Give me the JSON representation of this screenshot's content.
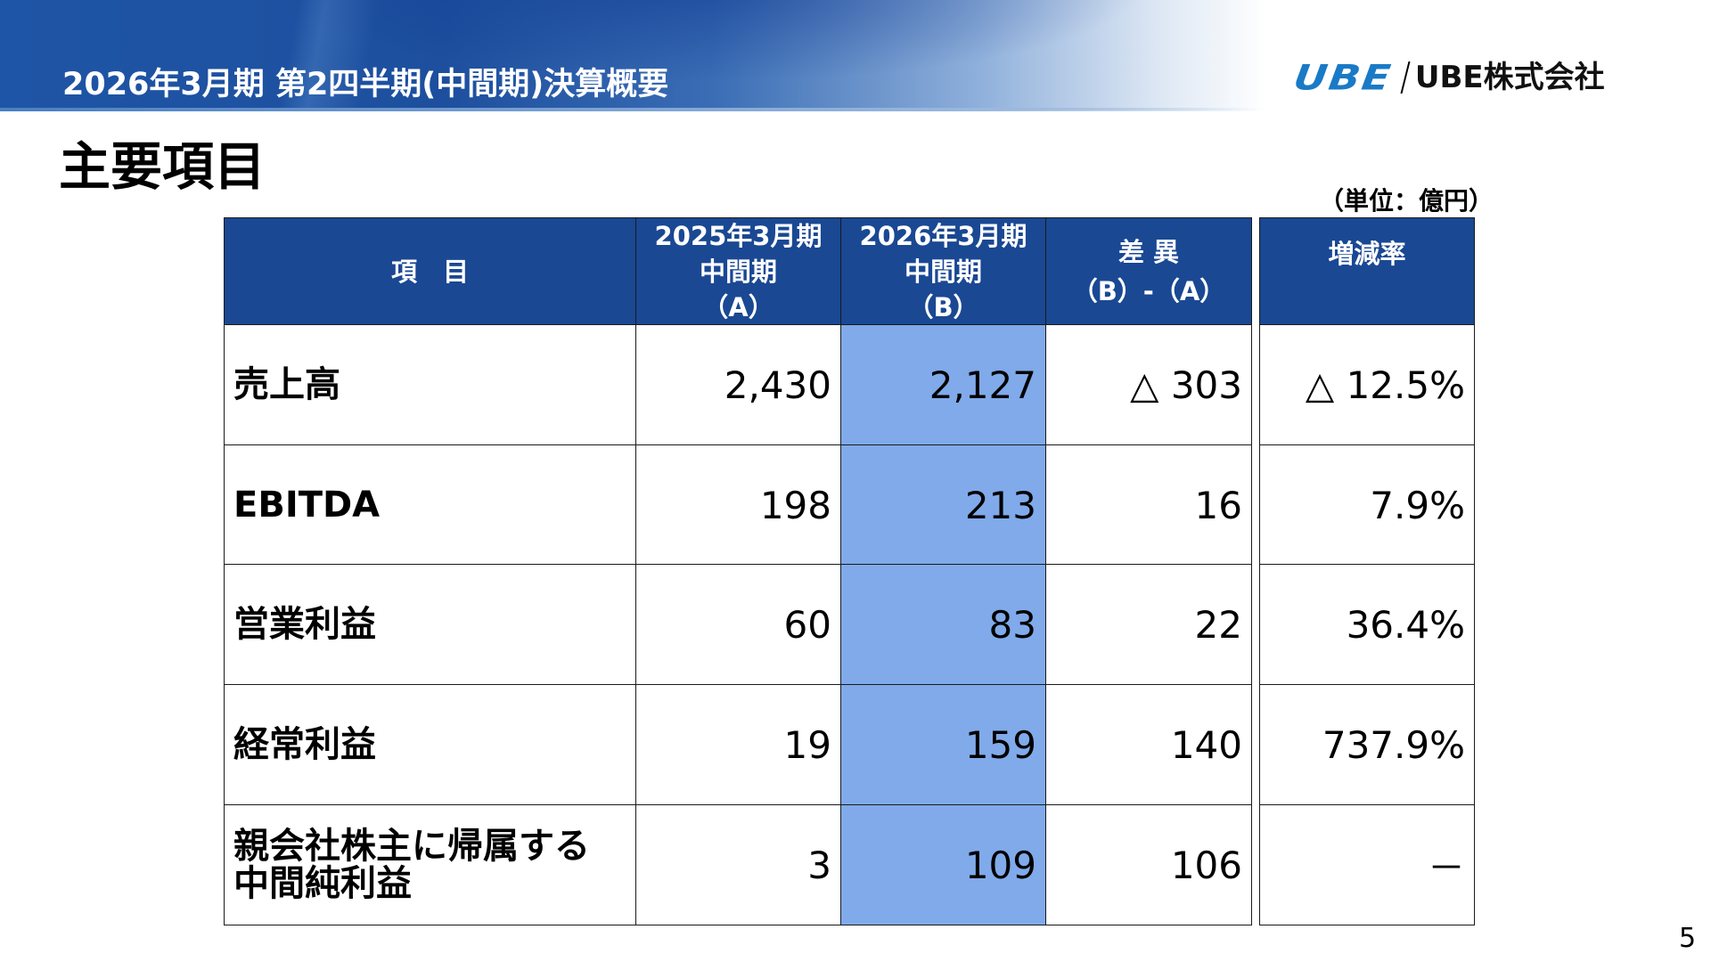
{
  "header": {
    "title": "2026年3月期 第2四半期(中間期)決算概要",
    "banner_color": "#1f55a6"
  },
  "logo": {
    "mark": "UBE",
    "company": "UBE株式会社",
    "mark_color": "#1a7ac6"
  },
  "page": {
    "title": "主要項目",
    "unit": "（単位：億円）",
    "number": "5"
  },
  "table": {
    "header_color": "#1a4893",
    "highlight_color": "#80aaea",
    "columns": [
      {
        "lines": [
          "項　目"
        ]
      },
      {
        "lines": [
          "2025年3月期",
          "中間期",
          "（A）"
        ]
      },
      {
        "lines": [
          "2026年3月期",
          "中間期",
          "（B）"
        ]
      },
      {
        "lines": [
          "差 異",
          "",
          "（B）-（A）"
        ]
      },
      {
        "lines": [
          "増減率"
        ]
      }
    ],
    "rows": [
      {
        "label": [
          "売上高"
        ],
        "a": "2,430",
        "b": "2,127",
        "diff": "△ 303",
        "rate": "△ 12.5%"
      },
      {
        "label": [
          "EBITDA"
        ],
        "a": "198",
        "b": "213",
        "diff": "16",
        "rate": "7.9%"
      },
      {
        "label": [
          "営業利益"
        ],
        "a": "60",
        "b": "83",
        "diff": "22",
        "rate": "36.4%"
      },
      {
        "label": [
          "経常利益"
        ],
        "a": "19",
        "b": "159",
        "diff": "140",
        "rate": "737.9%"
      },
      {
        "label": [
          "親会社株主に帰属する",
          "中間純利益"
        ],
        "a": "3",
        "b": "109",
        "diff": "106",
        "rate": "－"
      }
    ]
  }
}
